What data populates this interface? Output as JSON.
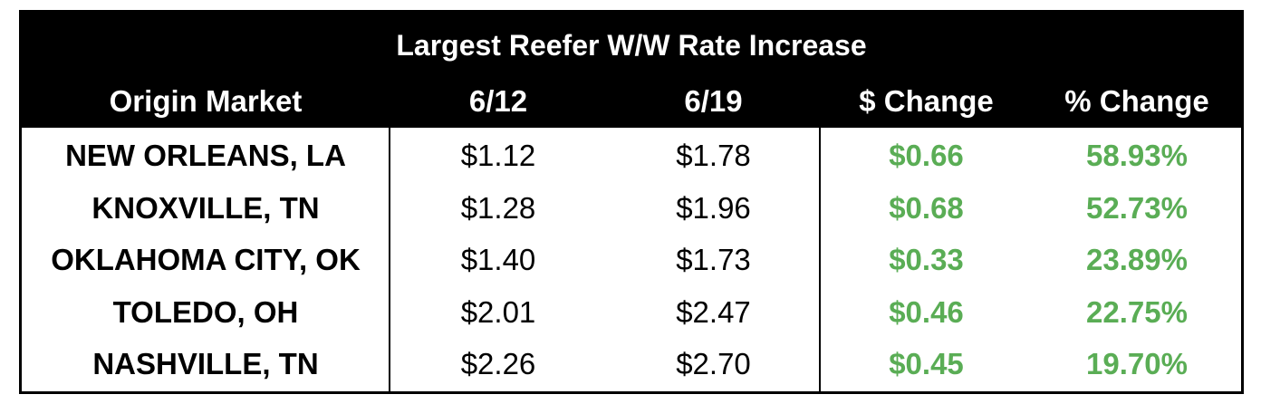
{
  "table": {
    "title": "Largest Reefer W/W Rate Increase",
    "columns": [
      "Origin Market",
      "6/12",
      "6/19",
      "$ Change",
      "% Change"
    ],
    "rows": [
      [
        "NEW ORLEANS, LA",
        "$1.12",
        "$1.78",
        "$0.66",
        "58.93%"
      ],
      [
        "KNOXVILLE, TN",
        "$1.28",
        "$1.96",
        "$0.68",
        "52.73%"
      ],
      [
        "OKLAHOMA CITY, OK",
        "$1.40",
        "$1.73",
        "$0.33",
        "23.89%"
      ],
      [
        "TOLEDO, OH",
        "$2.01",
        "$2.47",
        "$0.46",
        "22.75%"
      ],
      [
        "NASHVILLE, TN",
        "$2.26",
        "$2.70",
        "$0.45",
        "19.70%"
      ]
    ]
  }
}
